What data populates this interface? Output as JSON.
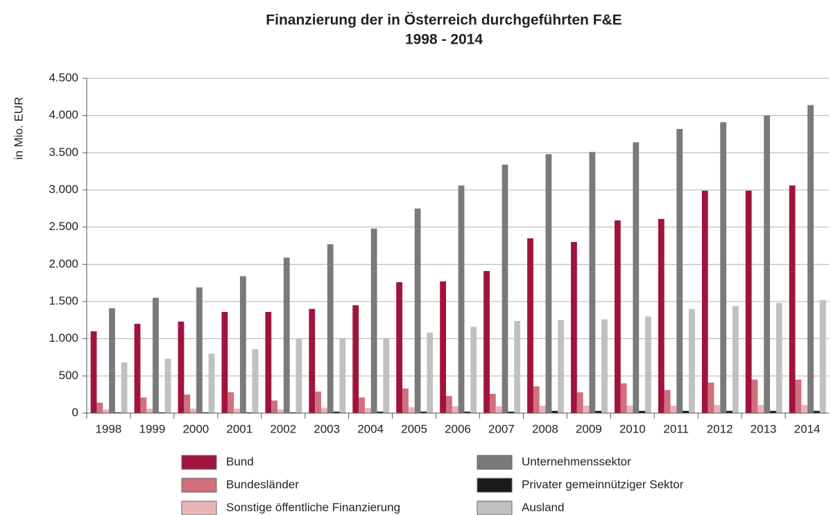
{
  "chart_data": {
    "type": "bar",
    "title": "Finanzierung der in Österreich durchgeführten F&E",
    "subtitle": "1998 - 2014",
    "y_label": "in Mio. EUR",
    "categories": [
      "1998",
      "1999",
      "2000",
      "2001",
      "2002",
      "2003",
      "2004",
      "2005",
      "2006",
      "2007",
      "2008",
      "2009",
      "2010",
      "2011",
      "2012",
      "2013",
      "2014"
    ],
    "series": [
      {
        "name": "Bund",
        "color": "#a0143c",
        "values": [
          1100,
          1200,
          1230,
          1360,
          1360,
          1400,
          1450,
          1760,
          1770,
          1910,
          2350,
          2300,
          2590,
          2610,
          2990,
          2990,
          3060
        ]
      },
      {
        "name": "Bundesländer",
        "color": "#d0707c",
        "values": [
          140,
          210,
          250,
          280,
          170,
          290,
          210,
          330,
          230,
          260,
          360,
          280,
          400,
          310,
          410,
          450,
          450
        ]
      },
      {
        "name": "Sonstige öffentliche Finanzierung",
        "color": "#e8b4b8",
        "values": [
          50,
          60,
          60,
          60,
          50,
          70,
          70,
          80,
          90,
          90,
          100,
          100,
          100,
          100,
          110,
          110,
          110
        ]
      },
      {
        "name": "Unternehmenssektor",
        "color": "#7a7a7a",
        "values": [
          1410,
          1550,
          1690,
          1840,
          2090,
          2270,
          2480,
          2750,
          3060,
          3340,
          3480,
          3510,
          3640,
          3820,
          3910,
          4000,
          4140
        ]
      },
      {
        "name": "Privater gemeinnütziger Sektor",
        "color": "#1a1a1a",
        "values": [
          10,
          10,
          10,
          10,
          10,
          20,
          20,
          20,
          20,
          20,
          30,
          30,
          30,
          30,
          30,
          30,
          30
        ]
      },
      {
        "name": "Ausland",
        "color": "#c0c0c0",
        "values": [
          680,
          730,
          800,
          860,
          1000,
          1010,
          1010,
          1080,
          1160,
          1240,
          1250,
          1260,
          1300,
          1400,
          1440,
          1480,
          1520
        ]
      }
    ],
    "ylim": [
      0,
      4500
    ],
    "yticks": [
      0,
      500,
      {
        "value": 1000,
        "label": "1.000"
      },
      {
        "value": 1500,
        "label": "1.500"
      },
      {
        "value": 2000,
        "label": "2.000"
      },
      {
        "value": 2500,
        "label": "2.500"
      },
      {
        "value": 3000,
        "label": "3.000"
      },
      {
        "value": 3500,
        "label": "3.500"
      },
      {
        "value": 4000,
        "label": "4.000"
      },
      {
        "value": 4500,
        "label": "4.500"
      }
    ],
    "grid": true,
    "legend": "bottom"
  }
}
